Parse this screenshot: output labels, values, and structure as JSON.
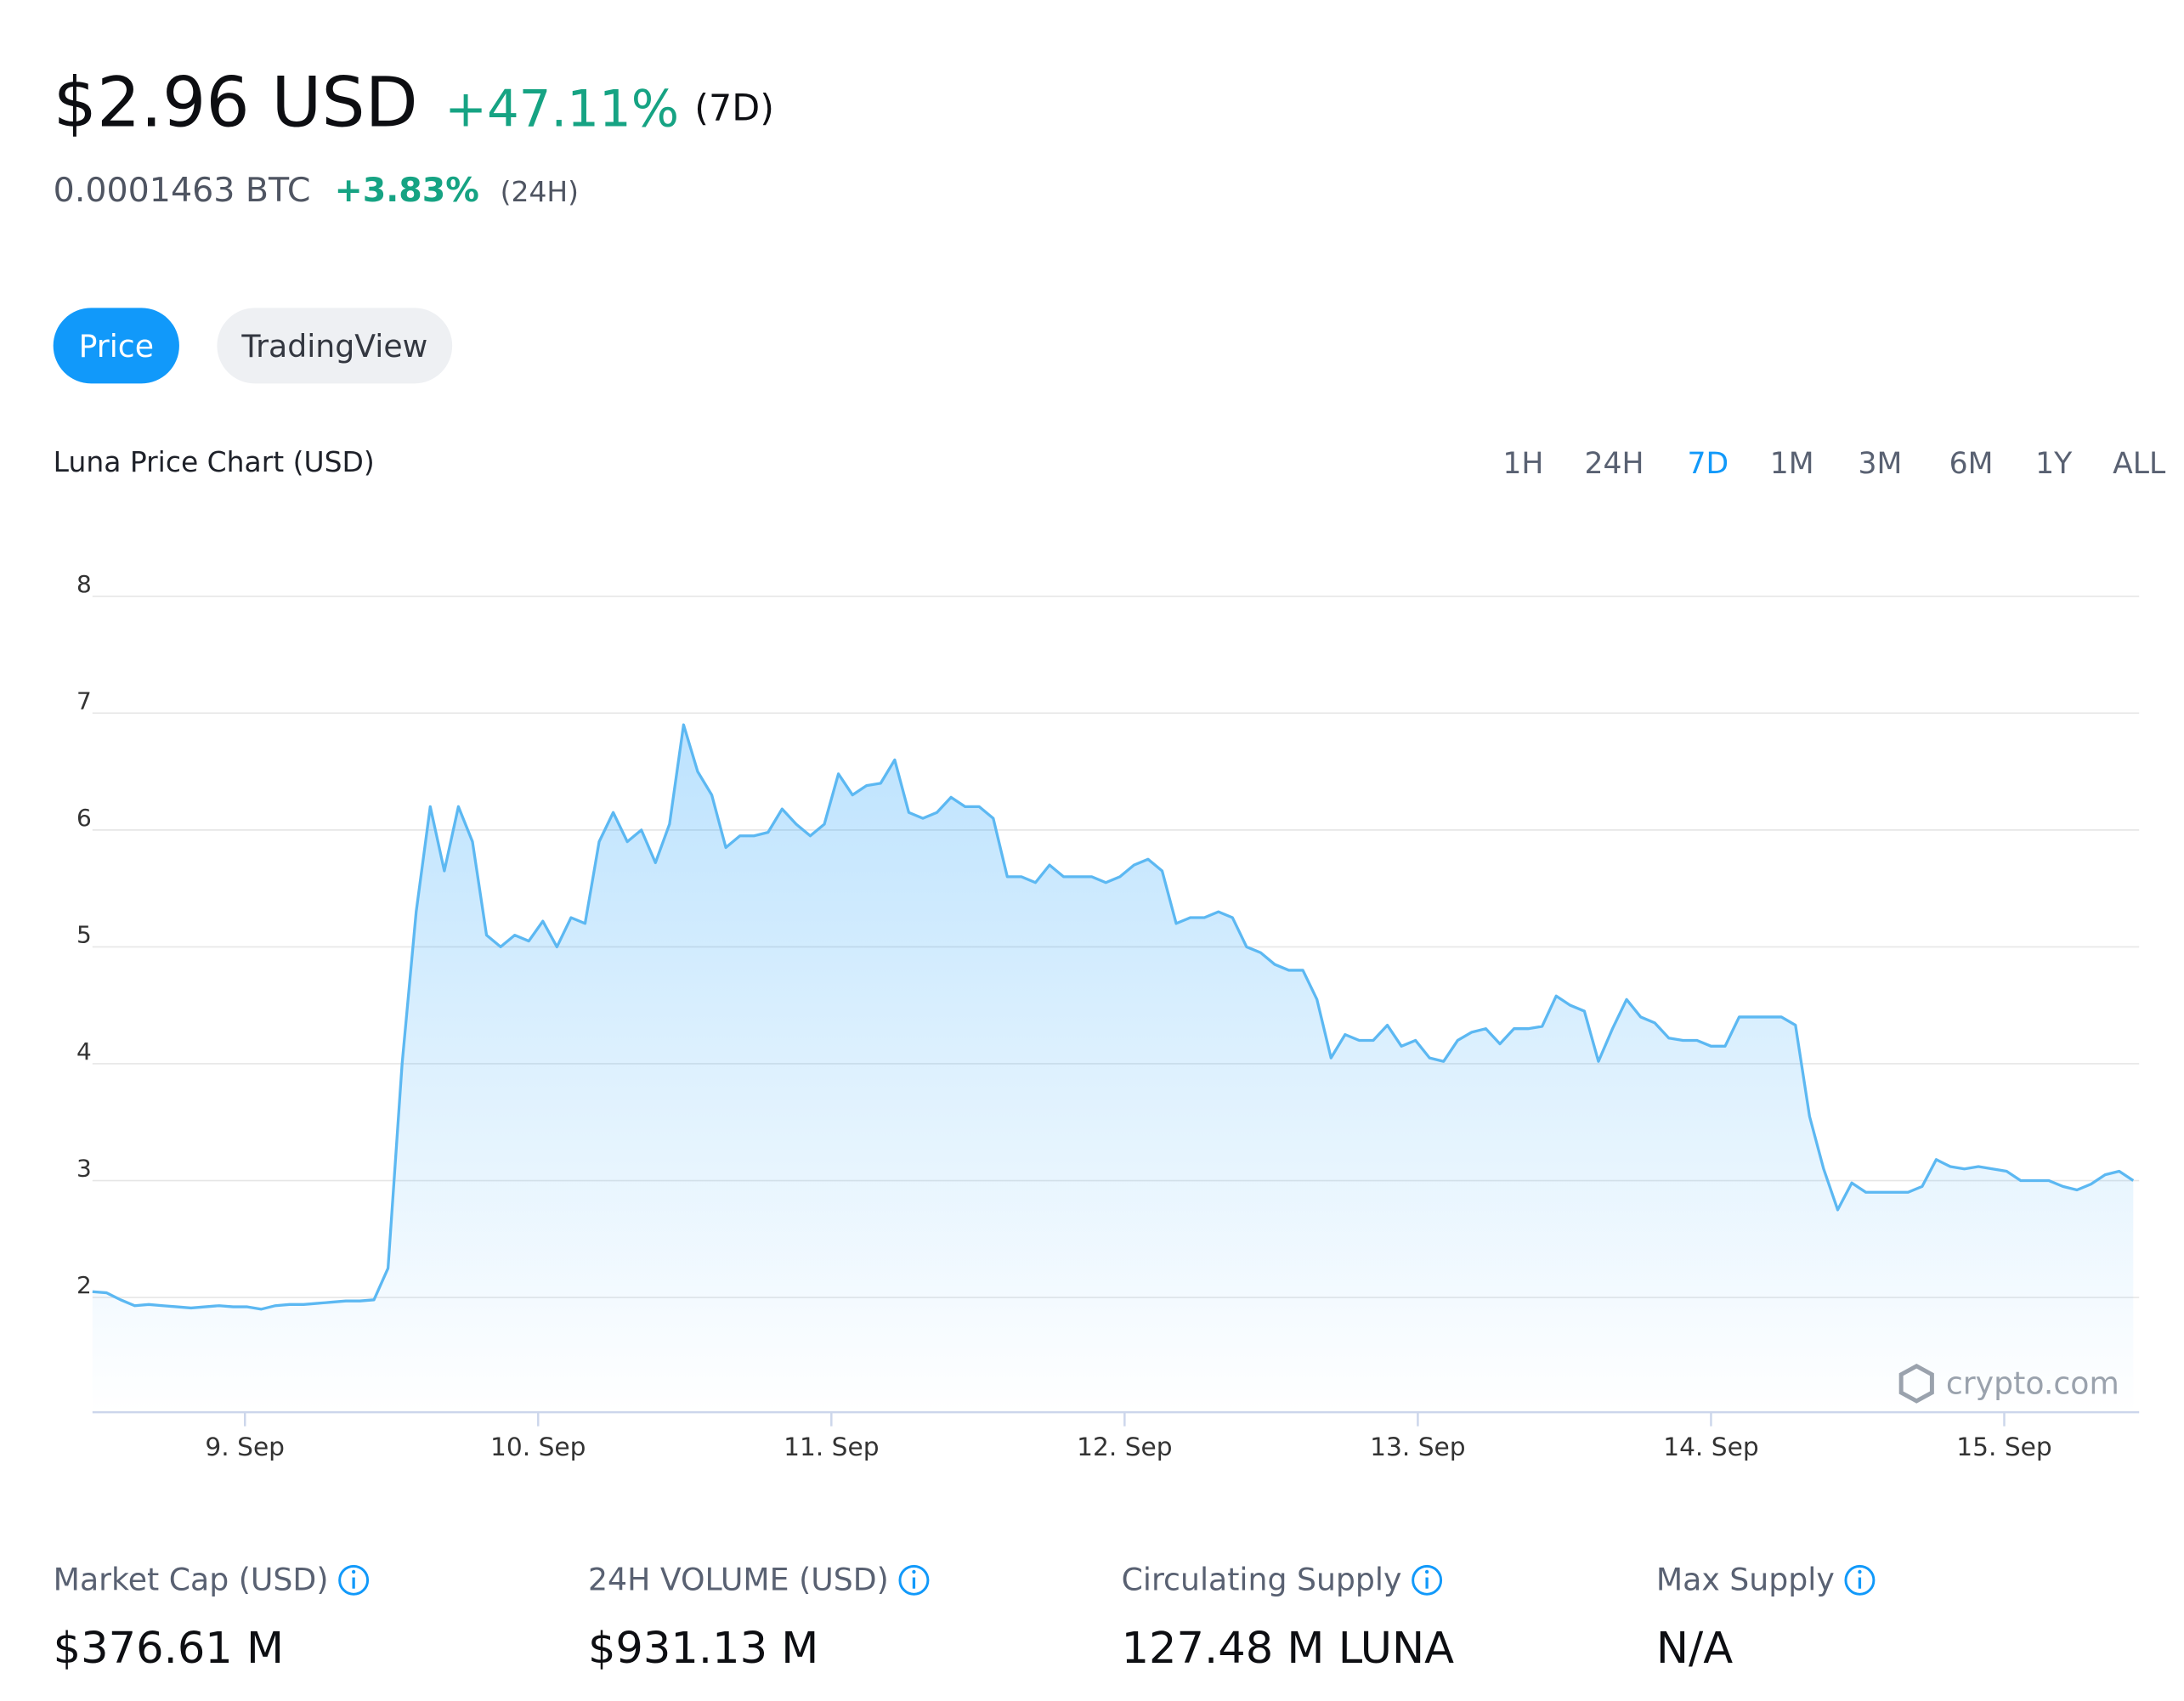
{
  "header": {
    "price": "$2.96 USD",
    "change_7d": "+47.11%",
    "change_7d_period": "(7D)",
    "btc_price": "0.0001463 BTC",
    "change_24h": "+3.83%",
    "change_24h_period": "(24H)"
  },
  "tabs": [
    "Price",
    "TradingView"
  ],
  "active_tab": 0,
  "ranges": [
    "1H",
    "24H",
    "7D",
    "1M",
    "3M",
    "6M",
    "1Y",
    "ALL"
  ],
  "active_range": 2,
  "chart_data": {
    "type": "area",
    "title": "Luna Price Chart (USD)",
    "watermark": "crypto.com",
    "color": "#5cb8f2",
    "fill": "#1199fa",
    "grid": true,
    "x": [
      8.48,
      8.528,
      8.576,
      8.624,
      8.672,
      8.72,
      8.768,
      8.816,
      8.864,
      8.912,
      8.96,
      9.008,
      9.056,
      9.104,
      9.152,
      9.2,
      9.248,
      9.296,
      9.344,
      9.392,
      9.44,
      9.488,
      9.536,
      9.584,
      9.632,
      9.68,
      9.728,
      9.776,
      9.824,
      9.872,
      9.92,
      9.968,
      10.016,
      10.064,
      10.112,
      10.16,
      10.208,
      10.256,
      10.304,
      10.352,
      10.4,
      10.448,
      10.496,
      10.544,
      10.592,
      10.64,
      10.688,
      10.736,
      10.784,
      10.832,
      10.88,
      10.928,
      10.976,
      11.024,
      11.072,
      11.12,
      11.168,
      11.216,
      11.264,
      11.312,
      11.36,
      11.408,
      11.456,
      11.504,
      11.552,
      11.6,
      11.648,
      11.696,
      11.744,
      11.792,
      11.84,
      11.888,
      11.936,
      11.984,
      12.032,
      12.08,
      12.128,
      12.176,
      12.224,
      12.272,
      12.32,
      12.368,
      12.416,
      12.464,
      12.512,
      12.56,
      12.608,
      12.656,
      12.704,
      12.752,
      12.8,
      12.848,
      12.896,
      12.944,
      12.992,
      13.04,
      13.088,
      13.136,
      13.184,
      13.232,
      13.28,
      13.328,
      13.376,
      13.424,
      13.472,
      13.52,
      13.568,
      13.616,
      13.664,
      13.712,
      13.76,
      13.808,
      13.856,
      13.904,
      13.952,
      14,
      14.048,
      14.096,
      14.144,
      14.192,
      14.24,
      14.288,
      14.336,
      14.384,
      14.432,
      14.48,
      14.528,
      14.576,
      14.624,
      14.672,
      14.72,
      14.768,
      14.816,
      14.864,
      14.912,
      14.96,
      15.008,
      15.056,
      15.104,
      15.152,
      15.2,
      15.248,
      15.296,
      15.344,
      15.392,
      15.44
    ],
    "values": [
      2.05,
      2.04,
      1.98,
      1.93,
      1.94,
      1.93,
      1.92,
      1.91,
      1.92,
      1.93,
      1.92,
      1.92,
      1.9,
      1.93,
      1.94,
      1.94,
      1.95,
      1.96,
      1.97,
      1.97,
      1.98,
      2.25,
      4.0,
      5.3,
      6.2,
      5.65,
      6.2,
      5.9,
      5.1,
      5.0,
      5.1,
      5.05,
      5.22,
      5.0,
      5.25,
      5.2,
      5.9,
      6.15,
      5.9,
      6.0,
      5.72,
      6.05,
      6.9,
      6.5,
      6.3,
      5.85,
      5.95,
      5.95,
      5.98,
      6.18,
      6.05,
      5.95,
      6.05,
      6.48,
      6.3,
      6.38,
      6.4,
      6.6,
      6.15,
      6.1,
      6.15,
      6.28,
      6.2,
      6.2,
      6.1,
      5.6,
      5.6,
      5.55,
      5.7,
      5.6,
      5.6,
      5.6,
      5.55,
      5.6,
      5.7,
      5.75,
      5.65,
      5.2,
      5.25,
      5.25,
      5.3,
      5.25,
      5.0,
      4.95,
      4.85,
      4.8,
      4.8,
      4.55,
      4.05,
      4.25,
      4.2,
      4.2,
      4.33,
      4.15,
      4.2,
      4.05,
      4.02,
      4.2,
      4.27,
      4.3,
      4.17,
      4.3,
      4.3,
      4.32,
      4.58,
      4.5,
      4.45,
      4.02,
      4.3,
      4.55,
      4.4,
      4.35,
      4.22,
      4.2,
      4.2,
      4.15,
      4.15,
      4.4,
      4.4,
      4.4,
      4.4,
      4.33,
      3.55,
      3.1,
      2.75,
      2.98,
      2.9,
      2.9,
      2.9,
      2.9,
      2.95,
      3.18,
      3.12,
      3.1,
      3.12,
      3.1,
      3.08,
      3.0,
      3.0,
      3.0,
      2.95,
      2.92,
      2.97,
      3.05,
      3.08,
      3.0
    ],
    "xlim": [
      8.48,
      15.46
    ],
    "xticks": [
      {
        "value": 9,
        "label": "9. Sep"
      },
      {
        "value": 10,
        "label": "10. Sep"
      },
      {
        "value": 11,
        "label": "11. Sep"
      },
      {
        "value": 12,
        "label": "12. Sep"
      },
      {
        "value": 13,
        "label": "13. Sep"
      },
      {
        "value": 14,
        "label": "14. Sep"
      },
      {
        "value": 15,
        "label": "15. Sep"
      }
    ],
    "ylim": [
      1,
      8
    ],
    "yticks": [
      2,
      3,
      4,
      5,
      6,
      7,
      8
    ]
  },
  "stats": [
    {
      "label": "Market Cap (USD)",
      "value": "$376.61 M"
    },
    {
      "label": "24H VOLUME (USD)",
      "value": "$931.13 M"
    },
    {
      "label": "Circulating Supply",
      "value": "127.48 M LUNA"
    },
    {
      "label": "Max Supply",
      "value": "N/A"
    }
  ]
}
